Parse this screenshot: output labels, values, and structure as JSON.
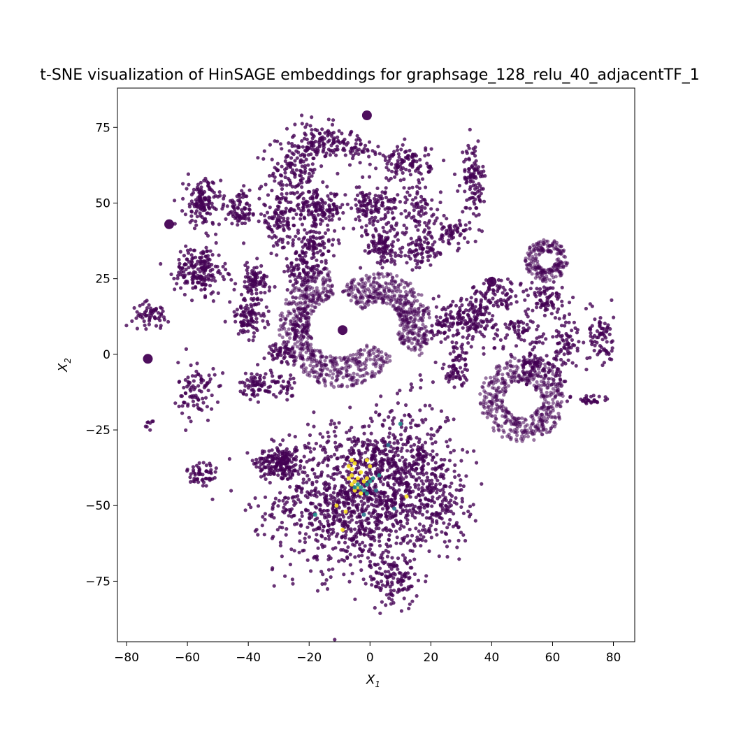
{
  "chart_data": {
    "type": "scatter",
    "title": "t-SNE visualization of HinSAGE embeddings for graphsage_128_relu_40_adjacentTF_1",
    "xlabel": "X",
    "xlabel_sub": "1",
    "ylabel": "X",
    "ylabel_sub": "2",
    "xlim": [
      -83,
      87
    ],
    "ylim": [
      -95,
      88
    ],
    "xticks": [
      -80,
      -60,
      -40,
      -20,
      0,
      20,
      40,
      60,
      80
    ],
    "yticks": [
      -75,
      -50,
      -25,
      0,
      25,
      50,
      75
    ],
    "xtick_labels": [
      "−80",
      "−60",
      "−40",
      "−20",
      "0",
      "20",
      "40",
      "60",
      "80"
    ],
    "ytick_labels": [
      "−75",
      "−50",
      "−25",
      "0",
      "25",
      "50",
      "75"
    ],
    "grid": false,
    "legend": "none",
    "colormap": "viridis",
    "colors": {
      "dominant": "#440154",
      "mid": "#21918c",
      "teal": "#2c728e",
      "high": "#fde725"
    },
    "clusters": [
      {
        "cx": -30,
        "cy": -36,
        "sx": 4,
        "sy": 3,
        "n": 160
      },
      {
        "cx": -5,
        "cy": -48,
        "sx": 13,
        "sy": 12,
        "n": 1100
      },
      {
        "cx": 12,
        "cy": -35,
        "sx": 8,
        "sy": 10,
        "n": 300
      },
      {
        "cx": 8,
        "cy": -75,
        "sx": 4,
        "sy": 4,
        "n": 110
      },
      {
        "cx": 22,
        "cy": -48,
        "sx": 5,
        "sy": 8,
        "n": 160
      },
      {
        "cx": -55,
        "cy": -40,
        "sx": 2.5,
        "sy": 3,
        "n": 55
      },
      {
        "cx": -72,
        "cy": -23,
        "sx": 1,
        "sy": 1,
        "n": 8
      },
      {
        "cx": -57,
        "cy": -12,
        "sx": 3,
        "sy": 5,
        "n": 90
      },
      {
        "cx": -37,
        "cy": -10,
        "sx": 3,
        "sy": 2,
        "n": 70
      },
      {
        "cx": -30,
        "cy": 0,
        "sx": 4,
        "sy": 2,
        "n": 50
      },
      {
        "cx": -72,
        "cy": 13,
        "sx": 3,
        "sy": 2,
        "n": 60
      },
      {
        "cx": -56,
        "cy": 28,
        "sx": 4,
        "sy": 4,
        "n": 190
      },
      {
        "cx": -55,
        "cy": 50,
        "sx": 3,
        "sy": 4,
        "n": 140
      },
      {
        "cx": -40,
        "cy": 12,
        "sx": 3,
        "sy": 3,
        "n": 100
      },
      {
        "cx": -38,
        "cy": 24,
        "sx": 3,
        "sy": 3,
        "n": 90
      },
      {
        "cx": -42,
        "cy": 48,
        "sx": 3,
        "sy": 3,
        "n": 80
      },
      {
        "cx": -30,
        "cy": 44,
        "sx": 3,
        "sy": 4,
        "n": 110
      },
      {
        "cx": -17,
        "cy": 48,
        "sx": 4,
        "sy": 3,
        "n": 140
      },
      {
        "cx": -25,
        "cy": 60,
        "sx": 4,
        "sy": 4,
        "n": 110
      },
      {
        "cx": -18,
        "cy": 70,
        "sx": 5,
        "sy": 3,
        "n": 120
      },
      {
        "cx": 1,
        "cy": 48,
        "sx": 4,
        "sy": 4,
        "n": 140
      },
      {
        "cx": 4,
        "cy": 36,
        "sx": 3,
        "sy": 3,
        "n": 100
      },
      {
        "cx": -18,
        "cy": 36,
        "sx": 3,
        "sy": 3,
        "n": 90
      },
      {
        "cx": -5,
        "cy": 68,
        "sx": 4,
        "sy": 3,
        "n": 60
      },
      {
        "cx": 12,
        "cy": 63,
        "sx": 4,
        "sy": 3,
        "n": 110
      },
      {
        "cx": 16,
        "cy": 48,
        "sx": 4,
        "sy": 4,
        "n": 80
      },
      {
        "cx": 17,
        "cy": 34,
        "sx": 3,
        "sy": 3,
        "n": 80
      },
      {
        "cx": 27,
        "cy": 40,
        "sx": 3,
        "sy": 2,
        "n": 60
      },
      {
        "cx": 34,
        "cy": 58,
        "sx": 2,
        "sy": 6,
        "n": 110
      },
      {
        "cx": -22,
        "cy": 27,
        "sx": 3,
        "sy": 3,
        "n": 80
      },
      {
        "cx": -23,
        "cy": 10,
        "sx": 2,
        "sy": 3,
        "n": 40
      },
      {
        "cx": -28,
        "cy": -10,
        "sx": 2,
        "sy": 2,
        "n": 30
      },
      {
        "cx": 23,
        "cy": 10,
        "sx": 3,
        "sy": 3,
        "n": 40
      },
      {
        "cx": 31,
        "cy": 12,
        "sx": 4,
        "sy": 4,
        "n": 120
      },
      {
        "cx": 29,
        "cy": -2,
        "sx": 2,
        "sy": 3,
        "n": 40
      },
      {
        "cx": 37,
        "cy": 13,
        "sx": 2,
        "sy": 4,
        "n": 60
      },
      {
        "cx": 43,
        "cy": 20,
        "sx": 3,
        "sy": 3,
        "n": 60
      },
      {
        "cx": 48,
        "cy": 8,
        "sx": 4,
        "sy": 3,
        "n": 60
      },
      {
        "cx": 58,
        "cy": 18,
        "sx": 3,
        "sy": 3,
        "n": 70
      },
      {
        "cx": 64,
        "cy": 5,
        "sx": 2,
        "sy": 5,
        "n": 70
      },
      {
        "cx": 76,
        "cy": 5,
        "sx": 2,
        "sy": 5,
        "n": 80
      },
      {
        "cx": 53,
        "cy": -2,
        "sx": 2,
        "sy": 4,
        "n": 50
      },
      {
        "cx": 28,
        "cy": -7,
        "sx": 2,
        "sy": 2,
        "n": 30
      },
      {
        "cx": 73,
        "cy": -15,
        "sx": 3,
        "sy": 1,
        "n": 30
      },
      {
        "cx": 60,
        "cy": -5,
        "sx": 3,
        "sy": 3,
        "n": 40
      }
    ],
    "rings": [
      {
        "cx": -10,
        "cy": 9,
        "r_in": 10,
        "r_out": 20,
        "a0": 100,
        "a1": 330,
        "n": 600
      },
      {
        "cx": 3,
        "cy": 10,
        "r_in": 7,
        "r_out": 17,
        "a0": -40,
        "a1": 140,
        "n": 450
      },
      {
        "cx": 50,
        "cy": -15,
        "r_in": 6,
        "r_out": 14,
        "a0": -20,
        "a1": 340,
        "n": 500
      },
      {
        "cx": 58,
        "cy": 31,
        "r_in": 3,
        "r_out": 7,
        "a0": 0,
        "a1": 360,
        "n": 220
      }
    ],
    "highlight_points": [
      {
        "x": -7,
        "y": -37,
        "v": 1
      },
      {
        "x": -6,
        "y": -38,
        "v": 1
      },
      {
        "x": -5,
        "y": -36,
        "v": 1
      },
      {
        "x": -6,
        "y": -40,
        "v": 1
      },
      {
        "x": -5,
        "y": -42,
        "v": 1
      },
      {
        "x": -6,
        "y": -43,
        "v": 1
      },
      {
        "x": -4,
        "y": -41,
        "v": 1
      },
      {
        "x": -3,
        "y": -39,
        "v": 1
      },
      {
        "x": -4,
        "y": -44,
        "v": 1
      },
      {
        "x": -2,
        "y": -42,
        "v": 1
      },
      {
        "x": -1,
        "y": -41,
        "v": 1
      },
      {
        "x": -7,
        "y": -41,
        "v": 1
      },
      {
        "x": -5,
        "y": -45,
        "v": 1
      },
      {
        "x": 0,
        "y": -37,
        "v": 1
      },
      {
        "x": -1,
        "y": -35,
        "v": 1
      },
      {
        "x": 12,
        "y": -47,
        "v": 1
      },
      {
        "x": -9,
        "y": -58,
        "v": 1
      },
      {
        "x": -11,
        "y": -50,
        "v": 1
      },
      {
        "x": -8,
        "y": -52,
        "v": 1
      },
      {
        "x": -3,
        "y": -46,
        "v": 1
      },
      {
        "x": -6,
        "y": -35,
        "v": 1
      },
      {
        "x": -4,
        "y": -43,
        "v": 0.5
      },
      {
        "x": -3,
        "y": -44,
        "v": 0.5
      },
      {
        "x": -2,
        "y": -45,
        "v": 0.5
      },
      {
        "x": -1,
        "y": -43,
        "v": 0.5
      },
      {
        "x": 0,
        "y": -42,
        "v": 0.5
      },
      {
        "x": 1,
        "y": -41,
        "v": 0.5
      },
      {
        "x": 3,
        "y": -40,
        "v": 0.5
      },
      {
        "x": -5,
        "y": -44,
        "v": 0.5
      },
      {
        "x": 10,
        "y": -23,
        "v": 0.5
      },
      {
        "x": -18,
        "y": -53,
        "v": 0.5
      },
      {
        "x": 8,
        "y": -51,
        "v": 0.3
      },
      {
        "x": -2,
        "y": -53,
        "v": 0.3
      },
      {
        "x": 6,
        "y": -30,
        "v": 0.3
      },
      {
        "x": -1,
        "y": -46,
        "v": 0.5
      },
      {
        "x": 2,
        "y": -45,
        "v": 0.3
      }
    ],
    "large_points": [
      {
        "x": -1,
        "y": 79
      },
      {
        "x": -9,
        "y": 8
      },
      {
        "x": 40,
        "y": 24
      },
      {
        "x": -73,
        "y": -1.5
      },
      {
        "x": -66,
        "y": 43
      },
      {
        "x": -28,
        "y": -35
      }
    ]
  }
}
